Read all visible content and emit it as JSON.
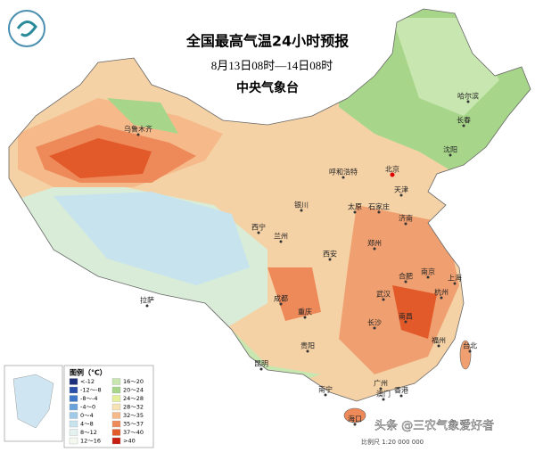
{
  "header": {
    "title": "全国最高气温24小时预报",
    "subtitle": "8月13日08时—14日08时",
    "issuer": "中央气象台"
  },
  "cities": [
    "乌鲁木齐",
    "哈尔滨",
    "长春",
    "沈阳",
    "呼和浩特",
    "北京",
    "天津",
    "银川",
    "太原",
    "石家庄",
    "济南",
    "西宁",
    "兰州",
    "西安",
    "郑州",
    "合肥",
    "南京",
    "上海",
    "杭州",
    "成都",
    "重庆",
    "武汉",
    "南昌",
    "长沙",
    "拉萨",
    "贵阳",
    "昆明",
    "福州",
    "台北",
    "南宁",
    "广州",
    "澳门",
    "香港",
    "海口"
  ],
  "legend": {
    "title": "图例（℃）",
    "items": [
      {
        "label": "<-12",
        "color": "#1b2f7a"
      },
      {
        "label": "-12～-8",
        "color": "#2a4fa8"
      },
      {
        "label": "-8～-4",
        "color": "#3f78c8"
      },
      {
        "label": "-4～0",
        "color": "#6aa2dc"
      },
      {
        "label": "0～4",
        "color": "#9fcbe8"
      },
      {
        "label": "4～8",
        "color": "#c7e3ee"
      },
      {
        "label": "8～12",
        "color": "#e3f2ef"
      },
      {
        "label": "12～16",
        "color": "#f4f9f0"
      },
      {
        "label": "16～20",
        "color": "#c8e6b0"
      },
      {
        "label": "20～24",
        "color": "#a7d68a"
      },
      {
        "label": "24～28",
        "color": "#e6ef9c"
      },
      {
        "label": "28～32",
        "color": "#f7e2b4"
      },
      {
        "label": "32～35",
        "color": "#f5b98a"
      },
      {
        "label": "35～37",
        "color": "#ee8a5a"
      },
      {
        "label": "37～40",
        "color": "#e35a2a"
      },
      {
        "label": ">40",
        "color": "#c81e10"
      }
    ]
  },
  "footer": {
    "scale": "比例尺 1:20 000 000",
    "watermark": "头条 @三农气象爱好者"
  }
}
